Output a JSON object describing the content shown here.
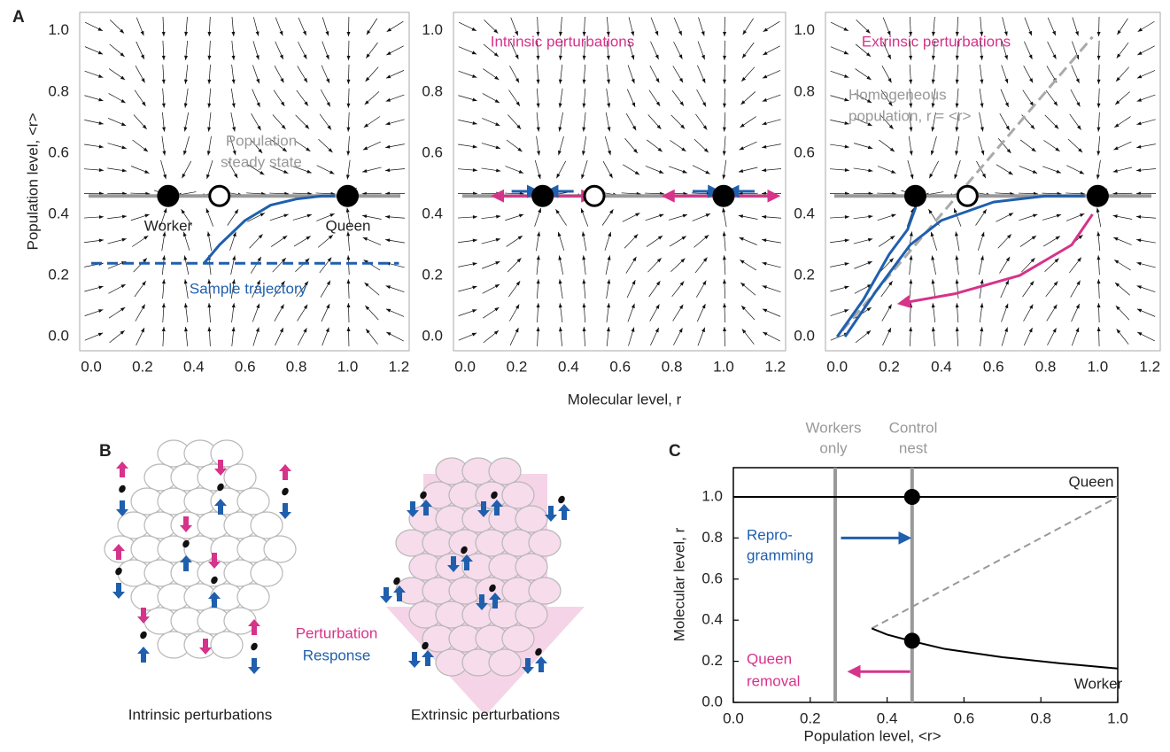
{
  "chart_data": [
    {
      "type": "vector-field",
      "panel": "A",
      "ylabel": "Population level, <r>",
      "xlim": [
        -0.045,
        1.24
      ],
      "ylim": [
        -0.046,
        1.06
      ],
      "xticks": [
        {
          "value": 0,
          "label": "0.0"
        },
        {
          "value": 0.2,
          "label": "0.2"
        },
        {
          "value": 0.4,
          "label": "0.4"
        },
        {
          "value": 0.6,
          "label": "0.6"
        },
        {
          "value": 0.8,
          "label": "0.8"
        },
        {
          "value": 1,
          "label": "1.0"
        },
        {
          "value": 1.2,
          "label": "1.2"
        }
      ],
      "yticks": [
        {
          "value": 0,
          "label": "0.0"
        },
        {
          "value": 0.2,
          "label": "0.2"
        },
        {
          "value": 0.4,
          "label": "0.4"
        },
        {
          "value": 0.6,
          "label": "0.6"
        },
        {
          "value": 0.8,
          "label": "0.8"
        },
        {
          "value": 1,
          "label": "1.0"
        }
      ],
      "steady_state": 0.46,
      "steady_color": "#999999",
      "stable_points": {
        "x": [
          0.3,
          1.0
        ],
        "y": [
          0.46,
          0.46
        ]
      },
      "unstable_points": {
        "x": [
          0.5
        ],
        "y": [
          0.46
        ]
      },
      "lines": [
        {
          "color": "#1f5fad",
          "dash": true,
          "x": [
            0,
            1.2
          ],
          "y": [
            0.24,
            0.24
          ]
        },
        {
          "color": "#1f5fad",
          "x": [
            0.44,
            0.5,
            0.6,
            0.7,
            0.8,
            0.9,
            0.95
          ],
          "y": [
            0.24,
            0.3,
            0.38,
            0.43,
            0.45,
            0.46,
            0.46
          ]
        }
      ],
      "annotations": {
        "steady": [
          "Population",
          "steady state"
        ],
        "worker": "Worker",
        "queen": "Queen",
        "trajectory": "Sample trajectory"
      }
    },
    {
      "type": "vector-field",
      "title": "Intrinsic perturbations",
      "title_color": "#d6338a",
      "xlabel": "Molecular level, r",
      "xlim": [
        -0.045,
        1.24
      ],
      "ylim": [
        -0.046,
        1.06
      ],
      "xticks": [
        {
          "value": 0,
          "label": "0.0"
        },
        {
          "value": 0.2,
          "label": "0.2"
        },
        {
          "value": 0.4,
          "label": "0.4"
        },
        {
          "value": 0.6,
          "label": "0.6"
        },
        {
          "value": 0.8,
          "label": "0.8"
        },
        {
          "value": 1,
          "label": "1.0"
        },
        {
          "value": 1.2,
          "label": "1.2"
        }
      ],
      "yticks": [
        {
          "value": 0,
          "label": "0.0"
        },
        {
          "value": 0.2,
          "label": "0.2"
        },
        {
          "value": 0.4,
          "label": "0.4"
        },
        {
          "value": 0.6,
          "label": "0.6"
        },
        {
          "value": 0.8,
          "label": "0.8"
        },
        {
          "value": 1,
          "label": "1.0"
        }
      ],
      "steady_state": 0.46,
      "steady_color": "#999999",
      "stable_points": {
        "x": [
          0.3,
          1.0
        ],
        "y": [
          0.46,
          0.46
        ]
      },
      "unstable_points": {
        "x": [
          0.5
        ],
        "y": [
          0.46
        ]
      },
      "lines": [
        {
          "color": "#d6338a",
          "arrow": "both",
          "x": [
            0.12,
            0.48
          ],
          "y": [
            0.46,
            0.46
          ]
        },
        {
          "color": "#1f5fad",
          "arrow": "end",
          "x": [
            0.18,
            0.27
          ],
          "y": [
            0.475,
            0.475
          ]
        },
        {
          "color": "#1f5fad",
          "arrow": "end",
          "x": [
            0.42,
            0.33
          ],
          "y": [
            0.475,
            0.475
          ]
        },
        {
          "color": "#d6338a",
          "arrow": "both",
          "x": [
            0.78,
            1.2
          ],
          "y": [
            0.46,
            0.46
          ]
        },
        {
          "color": "#1f5fad",
          "arrow": "end",
          "x": [
            0.88,
            0.97
          ],
          "y": [
            0.475,
            0.475
          ]
        },
        {
          "color": "#1f5fad",
          "arrow": "end",
          "x": [
            1.12,
            1.03
          ],
          "y": [
            0.475,
            0.475
          ]
        }
      ]
    },
    {
      "type": "vector-field",
      "title": "Extrinsic perturbations",
      "title_color": "#d6338a",
      "xlim": [
        -0.045,
        1.24
      ],
      "ylim": [
        -0.046,
        1.06
      ],
      "xticks": [
        {
          "value": 0,
          "label": "0.0"
        },
        {
          "value": 0.2,
          "label": "0.2"
        },
        {
          "value": 0.4,
          "label": "0.4"
        },
        {
          "value": 0.6,
          "label": "0.6"
        },
        {
          "value": 0.8,
          "label": "0.8"
        },
        {
          "value": 1,
          "label": "1.0"
        },
        {
          "value": 1.2,
          "label": "1.2"
        }
      ],
      "yticks": [
        {
          "value": 0,
          "label": "0.0"
        },
        {
          "value": 0.2,
          "label": "0.2"
        },
        {
          "value": 0.4,
          "label": "0.4"
        },
        {
          "value": 0.6,
          "label": "0.6"
        },
        {
          "value": 0.8,
          "label": "0.8"
        },
        {
          "value": 1,
          "label": "1.0"
        }
      ],
      "steady_state": 0.46,
      "steady_color": "#999999",
      "stable_points": {
        "x": [
          0.3,
          1.0
        ],
        "y": [
          0.46,
          0.46
        ]
      },
      "unstable_points": {
        "x": [
          0.5
        ],
        "y": [
          0.46
        ]
      },
      "lines": [
        {
          "color": "#aaaaaa",
          "dash": true,
          "x": [
            0.02,
            0.98
          ],
          "y": [
            0.02,
            0.98
          ]
        },
        {
          "color": "#1f5fad",
          "x": [
            0.0,
            0.1,
            0.2,
            0.27,
            0.3,
            0.3
          ],
          "y": [
            0.0,
            0.12,
            0.27,
            0.35,
            0.42,
            0.46
          ]
        },
        {
          "color": "#1f5fad",
          "x": [
            0.03,
            0.15,
            0.28,
            0.4,
            0.6,
            0.8,
            0.95
          ],
          "y": [
            0.0,
            0.15,
            0.3,
            0.38,
            0.44,
            0.46,
            0.46
          ]
        },
        {
          "color": "#d6338a",
          "arrow": "end",
          "x": [
            0.98,
            0.9,
            0.7,
            0.45,
            0.25
          ],
          "y": [
            0.4,
            0.3,
            0.2,
            0.14,
            0.11
          ]
        }
      ],
      "annotations": {
        "homogeneous": [
          "Homogeneous",
          "population, r = <r>"
        ]
      }
    },
    {
      "type": "line",
      "panel": "C",
      "xlabel": "Population level, <r>",
      "ylabel": "Molecular level, r",
      "xlim": [
        0,
        1
      ],
      "ylim": [
        0,
        1.142
      ],
      "xticks": [
        {
          "value": 0,
          "label": "0.0"
        },
        {
          "value": 0.2,
          "label": "0.2"
        },
        {
          "value": 0.4,
          "label": "0.4"
        },
        {
          "value": 0.6,
          "label": "0.6"
        },
        {
          "value": 0.8,
          "label": "0.8"
        },
        {
          "value": 1,
          "label": "1.0"
        }
      ],
      "yticks": [
        {
          "value": 0,
          "label": "0.0"
        },
        {
          "value": 0.2,
          "label": "0.2"
        },
        {
          "value": 0.4,
          "label": "0.4"
        },
        {
          "value": 0.6,
          "label": "0.6"
        },
        {
          "value": 0.8,
          "label": "0.8"
        },
        {
          "value": 1,
          "label": "1.0"
        }
      ],
      "vlines": {
        "x": [
          0.265,
          0.465
        ],
        "color": "#999999"
      },
      "points": {
        "x": [
          0.465,
          0.465
        ],
        "y": [
          1.0,
          0.3
        ]
      },
      "lines": [
        {
          "color": "#000000",
          "x": [
            0,
            1
          ],
          "y": [
            1,
            1
          ]
        },
        {
          "color": "#999999",
          "dash": true,
          "x": [
            0.36,
            1
          ],
          "y": [
            0.36,
            1
          ]
        },
        {
          "color": "#000000",
          "x": [
            0.36,
            0.4,
            0.46,
            0.55,
            0.7,
            0.85,
            1.0
          ],
          "y": [
            0.36,
            0.33,
            0.3,
            0.26,
            0.22,
            0.19,
            0.165
          ]
        },
        {
          "color": "#1f5fad",
          "arrow": "end",
          "x": [
            0.28,
            0.45
          ],
          "y": [
            0.8,
            0.8
          ]
        },
        {
          "color": "#d6338a",
          "arrow": "end",
          "x": [
            0.46,
            0.31
          ],
          "y": [
            0.15,
            0.15
          ]
        }
      ],
      "annotations": {
        "workers_only": [
          "Workers",
          "only"
        ],
        "control": [
          "Control",
          "nest"
        ],
        "queen": "Queen",
        "worker": "Worker",
        "reprogramming": [
          "Repro-",
          "gramming"
        ],
        "removal": [
          "Queen",
          "removal"
        ]
      }
    }
  ],
  "panel_b": {
    "label": "B",
    "intrinsic": "Intrinsic perturbations",
    "extrinsic": "Extrinsic perturbations",
    "perturbation": "Perturbation",
    "response": "Response"
  },
  "panel_labels": {
    "a": "A",
    "c": "C"
  }
}
